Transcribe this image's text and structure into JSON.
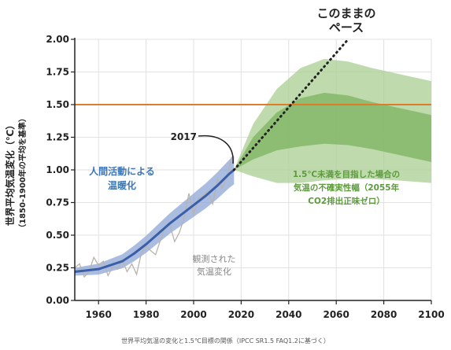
{
  "chart_data": {
    "type": "line",
    "ylabel": "世界平均気温変化（℃）",
    "ylabel_sub": "（1850-1900年の平均を基準）",
    "xlim": [
      1950,
      2100
    ],
    "ylim": [
      0,
      2.0
    ],
    "x_ticks": [
      1960,
      1980,
      2000,
      2020,
      2040,
      2060,
      2080,
      2100
    ],
    "y_ticks": [
      "0.00",
      "0.25",
      "0.50",
      "0.75",
      "1.00",
      "1.25",
      "1.50",
      "1.75",
      "2.00"
    ],
    "threshold": {
      "value": 1.5,
      "color": "#e07b2a"
    },
    "series": [
      {
        "color": "#b8b4ac",
        "x": [
          1950,
          1952,
          1954,
          1956,
          1958,
          1960,
          1962,
          1964,
          1966,
          1968,
          1970,
          1972,
          1974,
          1976,
          1978,
          1980,
          1982,
          1984,
          1986,
          1988,
          1990,
          1992,
          1994,
          1996,
          1998,
          2000,
          2002,
          2004,
          2006,
          2008,
          2010,
          2012,
          2014,
          2016
        ],
        "y": [
          0.25,
          0.28,
          0.18,
          0.22,
          0.33,
          0.27,
          0.3,
          0.19,
          0.26,
          0.24,
          0.31,
          0.22,
          0.28,
          0.2,
          0.36,
          0.42,
          0.38,
          0.35,
          0.46,
          0.56,
          0.58,
          0.45,
          0.52,
          0.63,
          0.82,
          0.66,
          0.78,
          0.8,
          0.84,
          0.74,
          0.93,
          0.86,
          0.95,
          1.1
        ]
      },
      {
        "color": "#3a5fa8",
        "x": [
          1950,
          1960,
          1970,
          1975,
          1980,
          1985,
          1990,
          1995,
          2000,
          2005,
          2010,
          2015,
          2017
        ],
        "y": [
          0.22,
          0.24,
          0.3,
          0.36,
          0.43,
          0.51,
          0.59,
          0.66,
          0.73,
          0.8,
          0.88,
          0.97,
          1.0
        ]
      },
      {
        "color": "#222222",
        "x": [
          2017,
          2065
        ],
        "y": [
          1.0,
          2.0
        ]
      },
      {
        "color": "#6aaa4a",
        "x": [
          2017,
          2025,
          2035,
          2045,
          2055,
          2065,
          2075,
          2085,
          2100
        ],
        "y_low": [
          1.0,
          0.95,
          0.9,
          0.9,
          0.92,
          0.93,
          0.93,
          0.92,
          0.9
        ],
        "y_high": [
          1.0,
          1.35,
          1.62,
          1.78,
          1.85,
          1.83,
          1.78,
          1.74,
          1.68
        ],
        "y_mid_low": [
          1.0,
          1.08,
          1.15,
          1.18,
          1.2,
          1.19,
          1.16,
          1.12,
          1.06
        ],
        "y_mid_high": [
          1.0,
          1.25,
          1.44,
          1.55,
          1.59,
          1.57,
          1.52,
          1.48,
          1.42
        ]
      }
    ],
    "annotations": {
      "this_pace": [
        "このままの",
        "ペース"
      ],
      "year_2017": "2017",
      "human": [
        "人間活動による",
        "温暖化"
      ],
      "observed": [
        "観測された",
        "気温変化"
      ],
      "scenario": [
        "1.5℃未満を目指した場合の",
        "気温の不確実性幅（2055年",
        "CO2排出正味ゼロ）"
      ]
    },
    "caption": "世界平均気温の変化と1.5℃目標の関係（IPCC SR1.5 FAQ1.2に基づく）",
    "colors": {
      "observed": "#b8b4ac",
      "human_line": "#3a5fa8",
      "human_band": "#8ea6d6",
      "green_outer": "#a9cf91",
      "green_inner": "#7fb564",
      "green_text": "#5c9a3c",
      "blue_text": "#3d76b5"
    }
  }
}
